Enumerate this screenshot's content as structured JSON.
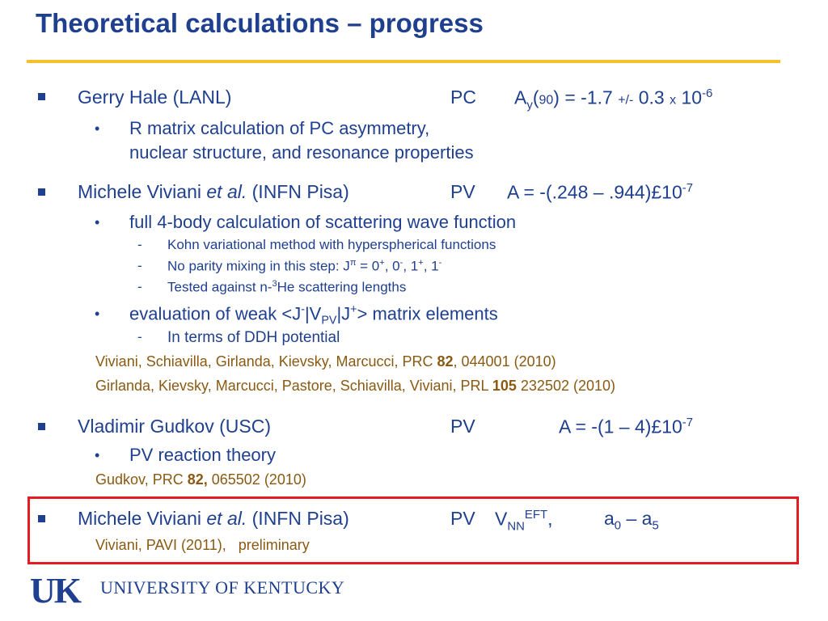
{
  "title": "Theoretical calculations – progress",
  "s1": {
    "bullet": "▪",
    "name": "Gerry Hale (LANL)",
    "type": "PC",
    "a": "A",
    "a_sub": "y",
    "a_arg_open": "(",
    "a_arg": "90",
    "a_arg_close": ")",
    "eq": " = ",
    "value": "-1.7",
    "pm": "+/-",
    "err": "0.3",
    "times": "x",
    "base": "10",
    "exp": "-6",
    "sub1": "R matrix calculation of PC asymmetry,",
    "sub2": "nuclear structure, and resonance properties"
  },
  "s2": {
    "name_a": "Michele Viviani ",
    "name_em": "et al.",
    "name_b": " (INFN Pisa)",
    "type": "PV",
    "value": "A = -(.248 – .944)£10",
    "exp": "-7",
    "sub1": "full 4-body calculation of scattering wave function",
    "d1": "Kohn variational method with hyperspherical functions",
    "d2a": "No parity mixing in this step:  J",
    "d2_pi": "π",
    "d2b": " =  0",
    "d2_s1": "+",
    "d2c": ", 0",
    "d2_s2": "-",
    "d2d": ", 1",
    "d2_s3": "+",
    "d2e": ", 1",
    "d2_s4": "-",
    "d3a": "Tested against n-",
    "d3_sup": "3",
    "d3b": "He scattering lengths",
    "sub2a": "evaluation of weak <J",
    "sub2_s1": "-",
    "sub2b": "|V",
    "sub2_sub": "PV",
    "sub2c": "|J",
    "sub2_s2": "+",
    "sub2d": "> matrix elements",
    "d4": "In terms of DDH potential",
    "ref1a": "Viviani, Schiavilla, Girlanda, Kievsky, Marcucci,  PRC ",
    "ref1b": "82",
    "ref1c": ", 044001 (2010)",
    "ref2a": "Girlanda, Kievsky, Marcucci, Pastore, Schiavilla, Viviani, PRL ",
    "ref2b": "105",
    "ref2c": " 232502 (2010)"
  },
  "s3": {
    "name": "Vladimir Gudkov (USC)",
    "type": "PV",
    "value": "A = -(1 – 4)£10",
    "exp": "-7",
    "sub1": "PV reaction theory",
    "refa": "Gudkov, PRC ",
    "refb": "82,",
    "refc": " 065502 (2010)"
  },
  "s4": {
    "name_a": "Michele Viviani ",
    "name_em": "et al.",
    "name_b": " (INFN Pisa)",
    "type": "PV",
    "v": "V",
    "v_sub": "NN",
    "v_sup": "EFT",
    "comma": ",",
    "a0": "a",
    "a0_sub": "0",
    "dash": " – a",
    "a5_sub": "5",
    "refa": "Viviani, PAVI (2011),",
    "refb": "preliminary"
  },
  "footer": {
    "logo": "UK",
    "university": "UNIVERSITY OF KENTUCKY"
  },
  "colors": {
    "text": "#1f3f8f",
    "rule": "#f5c02b",
    "reference": "#8a5a12",
    "highlight_box": "#e31b23"
  }
}
